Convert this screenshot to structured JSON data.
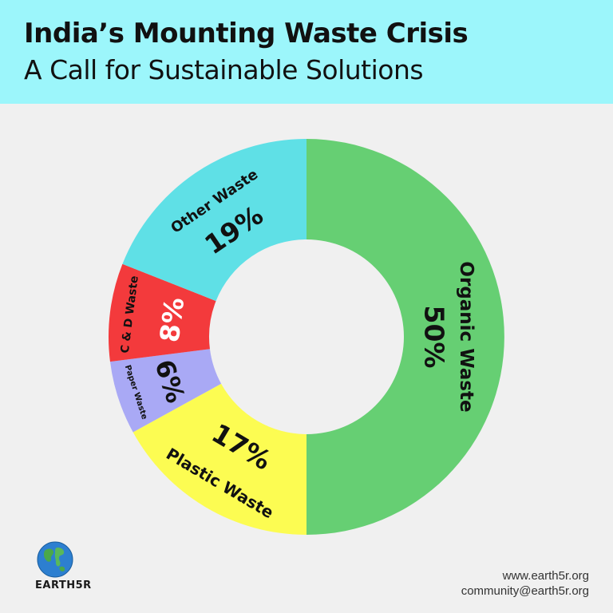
{
  "header": {
    "title": "India’s Mounting Waste Crisis",
    "subtitle": "A Call for Sustainable Solutions"
  },
  "chart_data": {
    "type": "pie",
    "style": "donut",
    "categories": [
      "Organic Waste",
      "Plastic Waste",
      "Paper Waste",
      "C & D Waste",
      "Other Waste"
    ],
    "values": [
      50,
      17,
      6,
      8,
      19
    ],
    "value_labels": [
      "50%",
      "17%",
      "6%",
      "8%",
      "19%"
    ],
    "colors": [
      "#66cf73",
      "#fcfc52",
      "#a9a9f5",
      "#f33a3c",
      "#5fe0e6"
    ]
  },
  "brand": {
    "logo_text": "EARTH5R",
    "logo_icon": "globe-icon"
  },
  "contact": {
    "website": "www.earth5r.org",
    "email": "community@earth5r.org"
  }
}
